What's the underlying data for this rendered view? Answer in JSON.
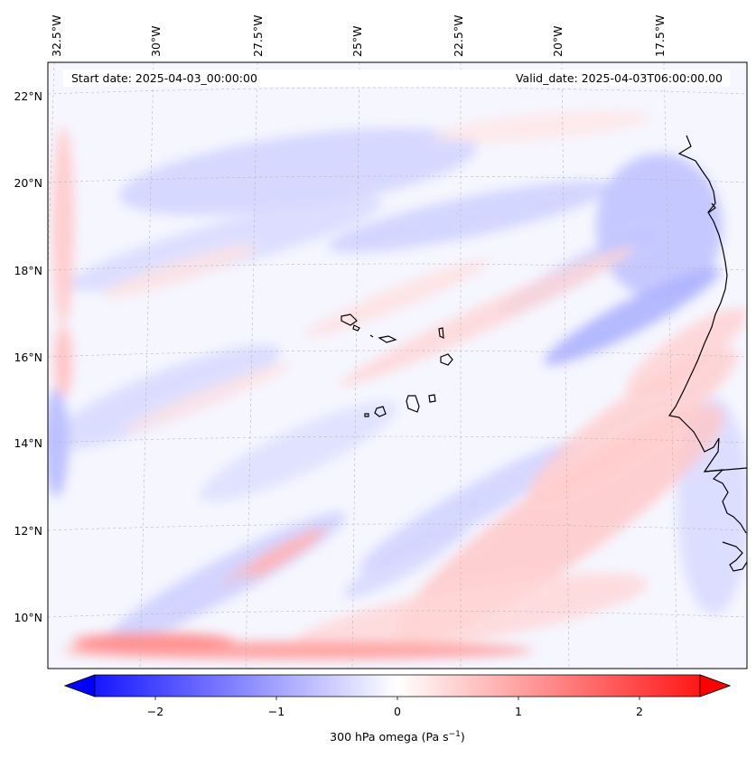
{
  "chart_data": {
    "type": "heatmap",
    "title": "",
    "start_date_label": "Start date: 2025-04-03_00:00:00",
    "valid_date_label": "Valid_date: 2025-04-03T06:00:00.00",
    "variable": "300 hPa omega",
    "units": "Pa s",
    "units_exponent": "−1",
    "lon_ticks": [
      "32.5°W",
      "30°W",
      "27.5°W",
      "25°W",
      "22.5°W",
      "20°W",
      "17.5°W"
    ],
    "lat_ticks": [
      "22°N",
      "20°N",
      "18°N",
      "16°N",
      "14°N",
      "12°N",
      "10°N"
    ],
    "lon_range": [
      -33,
      -15
    ],
    "lat_range": [
      9,
      22.8
    ],
    "colorbar": {
      "ticks": [
        "−2",
        "−1",
        "0",
        "1",
        "2"
      ],
      "tick_values": [
        -2,
        -1,
        0,
        1,
        2
      ],
      "range": [
        -2.5,
        2.5
      ],
      "extend": "both",
      "colormap": "bwr",
      "low_color": "#0000ff",
      "mid_color": "#ffffff",
      "high_color": "#ff0000"
    },
    "grid": true,
    "coastline_color": "#000000"
  }
}
